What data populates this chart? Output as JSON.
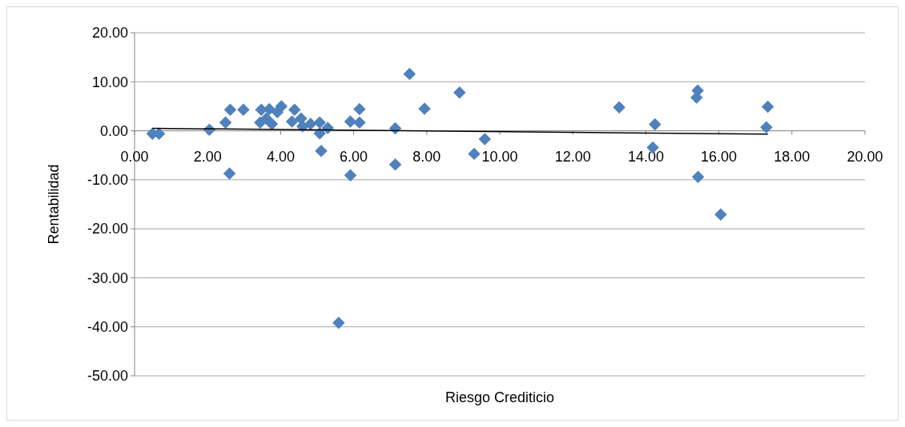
{
  "chart_data": {
    "type": "scatter",
    "xlabel": "Riesgo Crediticio",
    "ylabel": "Rentabilidad",
    "xlim": [
      0,
      20
    ],
    "ylim": [
      -50,
      20
    ],
    "xticks": [
      {
        "value": 0,
        "label": "0.00"
      },
      {
        "value": 2,
        "label": "2.00"
      },
      {
        "value": 4,
        "label": "4.00"
      },
      {
        "value": 6,
        "label": "6.00"
      },
      {
        "value": 8,
        "label": "8.00"
      },
      {
        "value": 10,
        "label": "10.00"
      },
      {
        "value": 12,
        "label": "12.00"
      },
      {
        "value": 14,
        "label": "14.00"
      },
      {
        "value": 16,
        "label": "16.00"
      },
      {
        "value": 18,
        "label": "18.00"
      },
      {
        "value": 20,
        "label": "20.00"
      }
    ],
    "yticks": [
      {
        "value": -50,
        "label": "-50.00"
      },
      {
        "value": -40,
        "label": "-40.00"
      },
      {
        "value": -30,
        "label": "-30.00"
      },
      {
        "value": -20,
        "label": "-20.00"
      },
      {
        "value": -10,
        "label": "-10.00"
      },
      {
        "value": 0,
        "label": "0.00"
      },
      {
        "value": 10,
        "label": "10.00"
      },
      {
        "value": 20,
        "label": "20.00"
      }
    ],
    "grid": "y",
    "marker": "diamond",
    "series": [
      {
        "color": "#4f81bd",
        "x": [
          0.49,
          0.67,
          2.05,
          2.49,
          2.62,
          2.98,
          2.6,
          3.47,
          3.44,
          3.69,
          3.61,
          3.76,
          3.91,
          4.02,
          4.38,
          4.31,
          4.56,
          4.6,
          4.82,
          5.07,
          5.07,
          5.29,
          5.11,
          5.91,
          6.16,
          6.16,
          5.91,
          5.59,
          7.14,
          7.14,
          7.53,
          7.94,
          8.9,
          9.59,
          9.3,
          13.27,
          14.25,
          14.19,
          15.42,
          15.39,
          15.43,
          16.05,
          17.34,
          17.3
        ],
        "values": [
          -0.6,
          -0.6,
          0.2,
          1.7,
          4.3,
          4.3,
          -8.7,
          4.3,
          1.7,
          4.4,
          2.5,
          1.4,
          3.8,
          5,
          4.3,
          1.9,
          2.5,
          0.9,
          1.4,
          1.7,
          -0.5,
          0.6,
          -4.1,
          1.9,
          4.4,
          1.7,
          -9.1,
          -39.2,
          0.5,
          -6.9,
          11.6,
          4.5,
          7.8,
          -1.7,
          -4.7,
          4.8,
          1.3,
          -3.4,
          8.2,
          6.8,
          -9.4,
          -17.1,
          4.9,
          0.7
        ]
      },
      {
        "type": "line",
        "color": "#000000",
        "marker": "none",
        "x": [
          0.49,
          17.34
        ],
        "values": [
          0.5,
          -0.7
        ]
      }
    ]
  }
}
